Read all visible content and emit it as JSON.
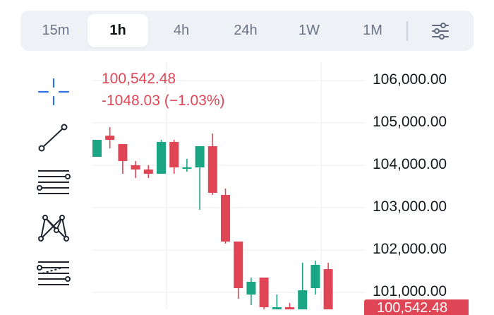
{
  "timeframes": {
    "items": [
      "15m",
      "1h",
      "4h",
      "24h",
      "1W",
      "1M"
    ],
    "active": "1h"
  },
  "tools": {
    "items": [
      "crosshair-icon",
      "trend-line-icon",
      "parallel-lines-icon",
      "pattern-icon",
      "fib-retracement-icon"
    ]
  },
  "readout": {
    "price": "100,542.48",
    "change": "-1048.03 (−1.03%)"
  },
  "price_tag": "100,542.48",
  "colors": {
    "up": "#1aa585",
    "down": "#e04555",
    "accent": "#2f6fe0"
  },
  "chart_data": {
    "type": "candlestick",
    "y_axis_labels": [
      "106,000.00",
      "105,000.00",
      "104,000.00",
      "103,000.00",
      "102,000.00",
      "101,000.00"
    ],
    "ylim": [
      100600,
      106500
    ],
    "candles": [
      {
        "o": 104200,
        "h": 104600,
        "l": 104200,
        "c": 104600
      },
      {
        "o": 104700,
        "h": 104900,
        "l": 104400,
        "c": 104600
      },
      {
        "o": 104500,
        "h": 104500,
        "l": 103800,
        "c": 104100
      },
      {
        "o": 104000,
        "h": 104100,
        "l": 103700,
        "c": 103900
      },
      {
        "o": 103900,
        "h": 104000,
        "l": 103700,
        "c": 103800
      },
      {
        "o": 103800,
        "h": 104600,
        "l": 103800,
        "c": 104550
      },
      {
        "o": 104550,
        "h": 104600,
        "l": 103800,
        "c": 103950
      },
      {
        "o": 103950,
        "h": 104150,
        "l": 103850,
        "c": 103950
      },
      {
        "o": 103950,
        "h": 104450,
        "l": 102950,
        "c": 104450
      },
      {
        "o": 104450,
        "h": 104750,
        "l": 103300,
        "c": 103350
      },
      {
        "o": 103300,
        "h": 103450,
        "l": 102150,
        "c": 102200
      },
      {
        "o": 102200,
        "h": 102200,
        "l": 100850,
        "c": 101100
      },
      {
        "o": 100950,
        "h": 101350,
        "l": 100700,
        "c": 101250
      },
      {
        "o": 101350,
        "h": 101350,
        "l": 100600,
        "c": 100650
      },
      {
        "o": 100600,
        "h": 100950,
        "l": 100500,
        "c": 100650
      },
      {
        "o": 100650,
        "h": 100750,
        "l": 100500,
        "c": 100600
      },
      {
        "o": 100600,
        "h": 101700,
        "l": 100500,
        "c": 101050
      },
      {
        "o": 101100,
        "h": 101750,
        "l": 100950,
        "c": 101650
      },
      {
        "o": 101550,
        "h": 101700,
        "l": 100550,
        "c": 100550
      }
    ]
  }
}
